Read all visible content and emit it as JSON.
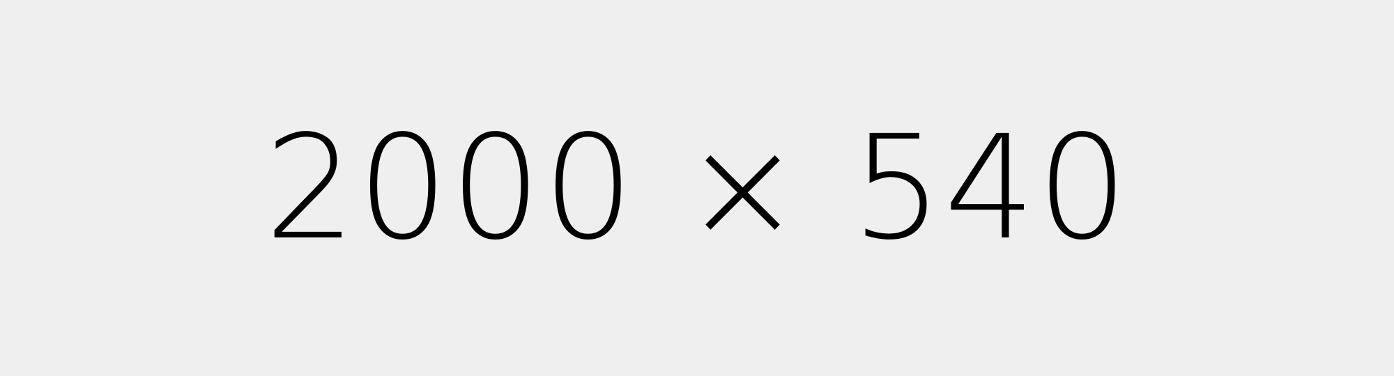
{
  "placeholder": {
    "label": "2000 × 540",
    "background_color": "#efefef",
    "text_color": "#000000"
  }
}
